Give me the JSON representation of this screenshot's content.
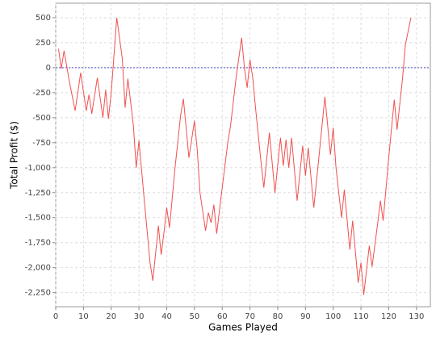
{
  "chart_data": {
    "type": "line",
    "x_label": "Games Played",
    "y_label": "Total Profit ($)",
    "series": [
      {
        "name": "Total Profit",
        "color": "#f05050",
        "x": [
          1,
          2,
          3,
          5,
          7,
          9,
          11,
          12,
          13,
          15,
          17,
          18,
          19,
          20,
          22,
          24,
          25,
          26,
          28,
          29,
          30,
          32,
          34,
          35,
          37,
          38,
          39,
          40,
          41,
          43,
          45,
          46,
          47,
          48,
          50,
          51,
          52,
          54,
          55,
          56,
          57,
          58,
          60,
          62,
          63,
          65,
          67,
          68,
          69,
          70,
          71,
          72,
          74,
          75,
          77,
          79,
          81,
          82,
          83,
          84,
          85,
          87,
          89,
          90,
          91,
          93,
          95,
          97,
          99,
          100,
          101,
          103,
          104,
          106,
          107,
          109,
          110,
          111,
          113,
          114,
          116,
          117,
          118,
          120,
          122,
          123,
          125,
          126,
          128
        ],
        "values": [
          190,
          -10,
          170,
          -150,
          -430,
          -50,
          -430,
          -270,
          -460,
          -100,
          -500,
          -220,
          -510,
          -250,
          500,
          90,
          -400,
          -110,
          -580,
          -1000,
          -730,
          -1350,
          -1950,
          -2130,
          -1580,
          -1870,
          -1650,
          -1400,
          -1600,
          -1000,
          -480,
          -310,
          -600,
          -900,
          -530,
          -820,
          -1250,
          -1630,
          -1450,
          -1550,
          -1370,
          -1660,
          -1200,
          -750,
          -580,
          -100,
          300,
          0,
          -200,
          80,
          -100,
          -400,
          -950,
          -1200,
          -650,
          -1250,
          -700,
          -980,
          -720,
          -1000,
          -700,
          -1330,
          -780,
          -1080,
          -800,
          -1400,
          -850,
          -290,
          -870,
          -600,
          -1000,
          -1500,
          -1220,
          -1820,
          -1530,
          -2150,
          -1950,
          -2270,
          -1780,
          -1990,
          -1560,
          -1330,
          -1530,
          -900,
          -320,
          -620,
          -100,
          230,
          500
        ]
      }
    ],
    "reference_line": {
      "value": 0,
      "color": "#5050d0"
    },
    "xlim": [
      0,
      135
    ],
    "xticks": [
      0,
      10,
      20,
      30,
      40,
      50,
      60,
      70,
      80,
      90,
      100,
      110,
      120,
      130
    ],
    "ylim": [
      -2390,
      645
    ],
    "yticks": [
      {
        "value": -2250,
        "label": "-2,250"
      },
      {
        "value": -2000,
        "label": "-2,000"
      },
      {
        "value": -1750,
        "label": "-1,750"
      },
      {
        "value": -1500,
        "label": "-1,500"
      },
      {
        "value": -1250,
        "label": "-1,250"
      },
      {
        "value": -1000,
        "label": "-1,000"
      },
      -750,
      -500,
      -250,
      0,
      250,
      500
    ],
    "grid": true
  }
}
